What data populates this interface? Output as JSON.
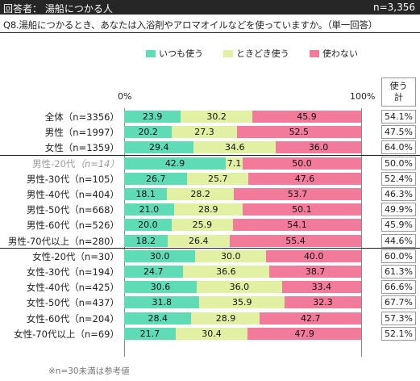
{
  "header": {
    "respondents": "回答者： 湯船につかる人",
    "n_total": "n=3,356"
  },
  "question": "Q8.湯船につかるとき、あなたは入浴剤やアロマオイルなどを使っていますか。（単一回答）",
  "legend": [
    {
      "name": "いつも使う",
      "color": "#5fdcb6"
    },
    {
      "name": "ときどき使う",
      "color": "#e2f0a4"
    },
    {
      "name": "使わない",
      "color": "#f27a9a"
    }
  ],
  "axis": {
    "min_label": "0%",
    "max_label": "100%"
  },
  "column_header": {
    "line1": "使う",
    "line2": "計"
  },
  "footnote": "※n=30未満は参考値",
  "chart_data": {
    "type": "bar",
    "orientation": "horizontal",
    "stacked": true,
    "xlim": [
      0,
      100
    ],
    "categories": [
      "全体（n=3356）",
      "男性（n=1997）",
      "女性（n=1359）",
      "男性-20代（n=14）",
      "男性-30代（n=105）",
      "男性-40代（n=404）",
      "男性-50代（n=668）",
      "男性-60代（n=526）",
      "男性-70代以上（n=280）",
      "女性-20代（n=30）",
      "女性-30代（n=194）",
      "女性-40代（n=425）",
      "女性-50代（n=437）",
      "女性-60代（n=204）",
      "女性-70代以上（n=69）"
    ],
    "reference_rows": [
      3
    ],
    "series": [
      {
        "name": "いつも使う",
        "values": [
          "23.9",
          "20.2",
          "29.4",
          "42.9",
          "26.7",
          "18.1",
          "21.0",
          "20.0",
          "18.2",
          "30.0",
          "24.7",
          "30.6",
          "31.8",
          "28.4",
          "21.7"
        ]
      },
      {
        "name": "ときどき使う",
        "values": [
          "30.2",
          "27.3",
          "34.6",
          "7.1",
          "25.7",
          "28.2",
          "28.9",
          "25.9",
          "26.4",
          "30.0",
          "36.6",
          "36.0",
          "35.9",
          "28.9",
          "30.4"
        ]
      },
      {
        "name": "使わない",
        "values": [
          "45.9",
          "52.5",
          "36.0",
          "50.0",
          "47.6",
          "53.7",
          "50.1",
          "54.1",
          "55.4",
          "40.0",
          "38.7",
          "33.4",
          "32.3",
          "42.7",
          "47.9"
        ]
      }
    ],
    "use_total": [
      "54.1%",
      "47.5%",
      "64.0%",
      "50.0%",
      "52.4%",
      "46.3%",
      "49.9%",
      "45.9%",
      "44.6%",
      "60.0%",
      "61.3%",
      "66.6%",
      "67.7%",
      "57.3%",
      "52.1%"
    ]
  }
}
